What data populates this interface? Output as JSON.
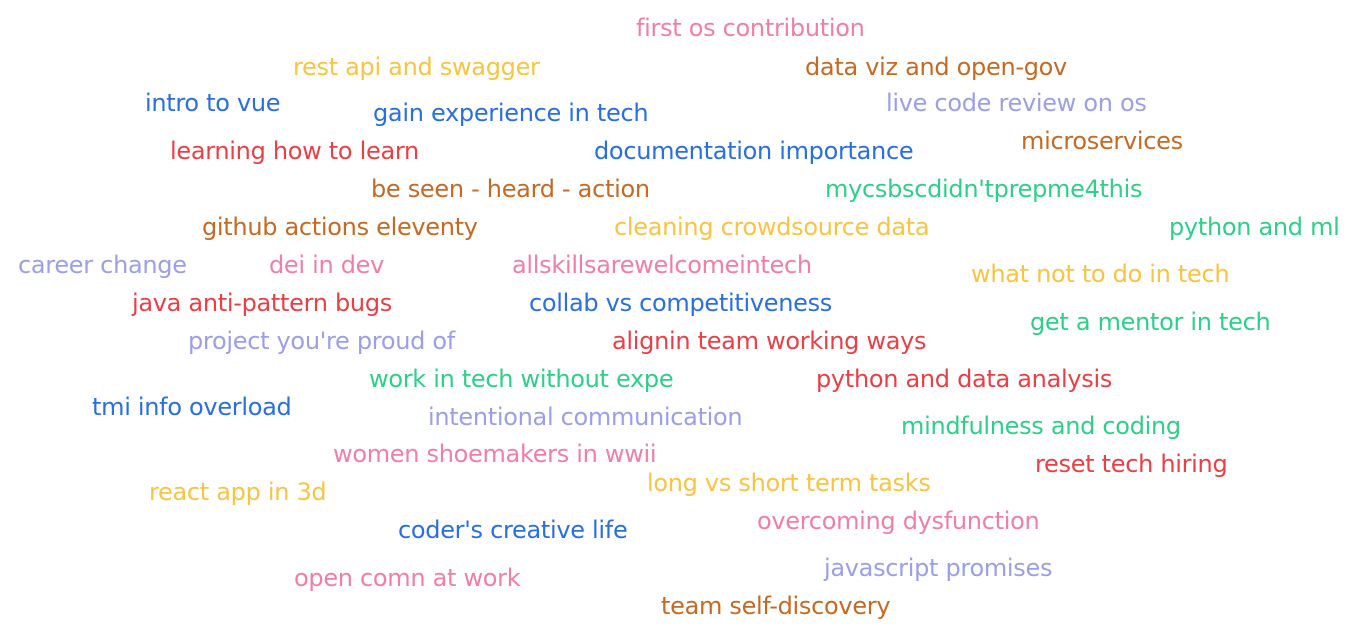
{
  "words": [
    "first os contribution",
    "rest api and swagger",
    "data viz and open-gov",
    "intro to vue",
    "live code review on os",
    "gain experience in tech",
    "microservices",
    "learning how to learn",
    "documentation importance",
    "be seen - heard - action",
    "mycsbscdidn'tprepme4this",
    "github actions eleventy",
    "cleaning crowdsource data",
    "python and ml",
    "career change",
    "dei in dev",
    "allskillsarewelcomeintech",
    "what not to do in tech",
    "java anti-pattern bugs",
    "collab vs competitiveness",
    "get a mentor in tech",
    "project you're proud of",
    "alignin team working ways",
    "work in tech without expe",
    "python and data analysis",
    "tmi info overload",
    "intentional communication",
    "mindfulness and coding",
    "women shoemakers in wwii",
    "reset tech hiring",
    "react app in 3d",
    "long vs short term tasks",
    "overcoming dysfunction",
    "coder's creative life",
    "javascript promises",
    "open comn at work",
    "team self-discovery"
  ],
  "colors": {
    "pink": "#f17fa5",
    "yellow": "#f7c443",
    "brown": "#c56a24",
    "blue": "#2a6fe0",
    "lavender": "#9b9fe8",
    "red": "#ea3f45",
    "green": "#2fcf8a"
  }
}
